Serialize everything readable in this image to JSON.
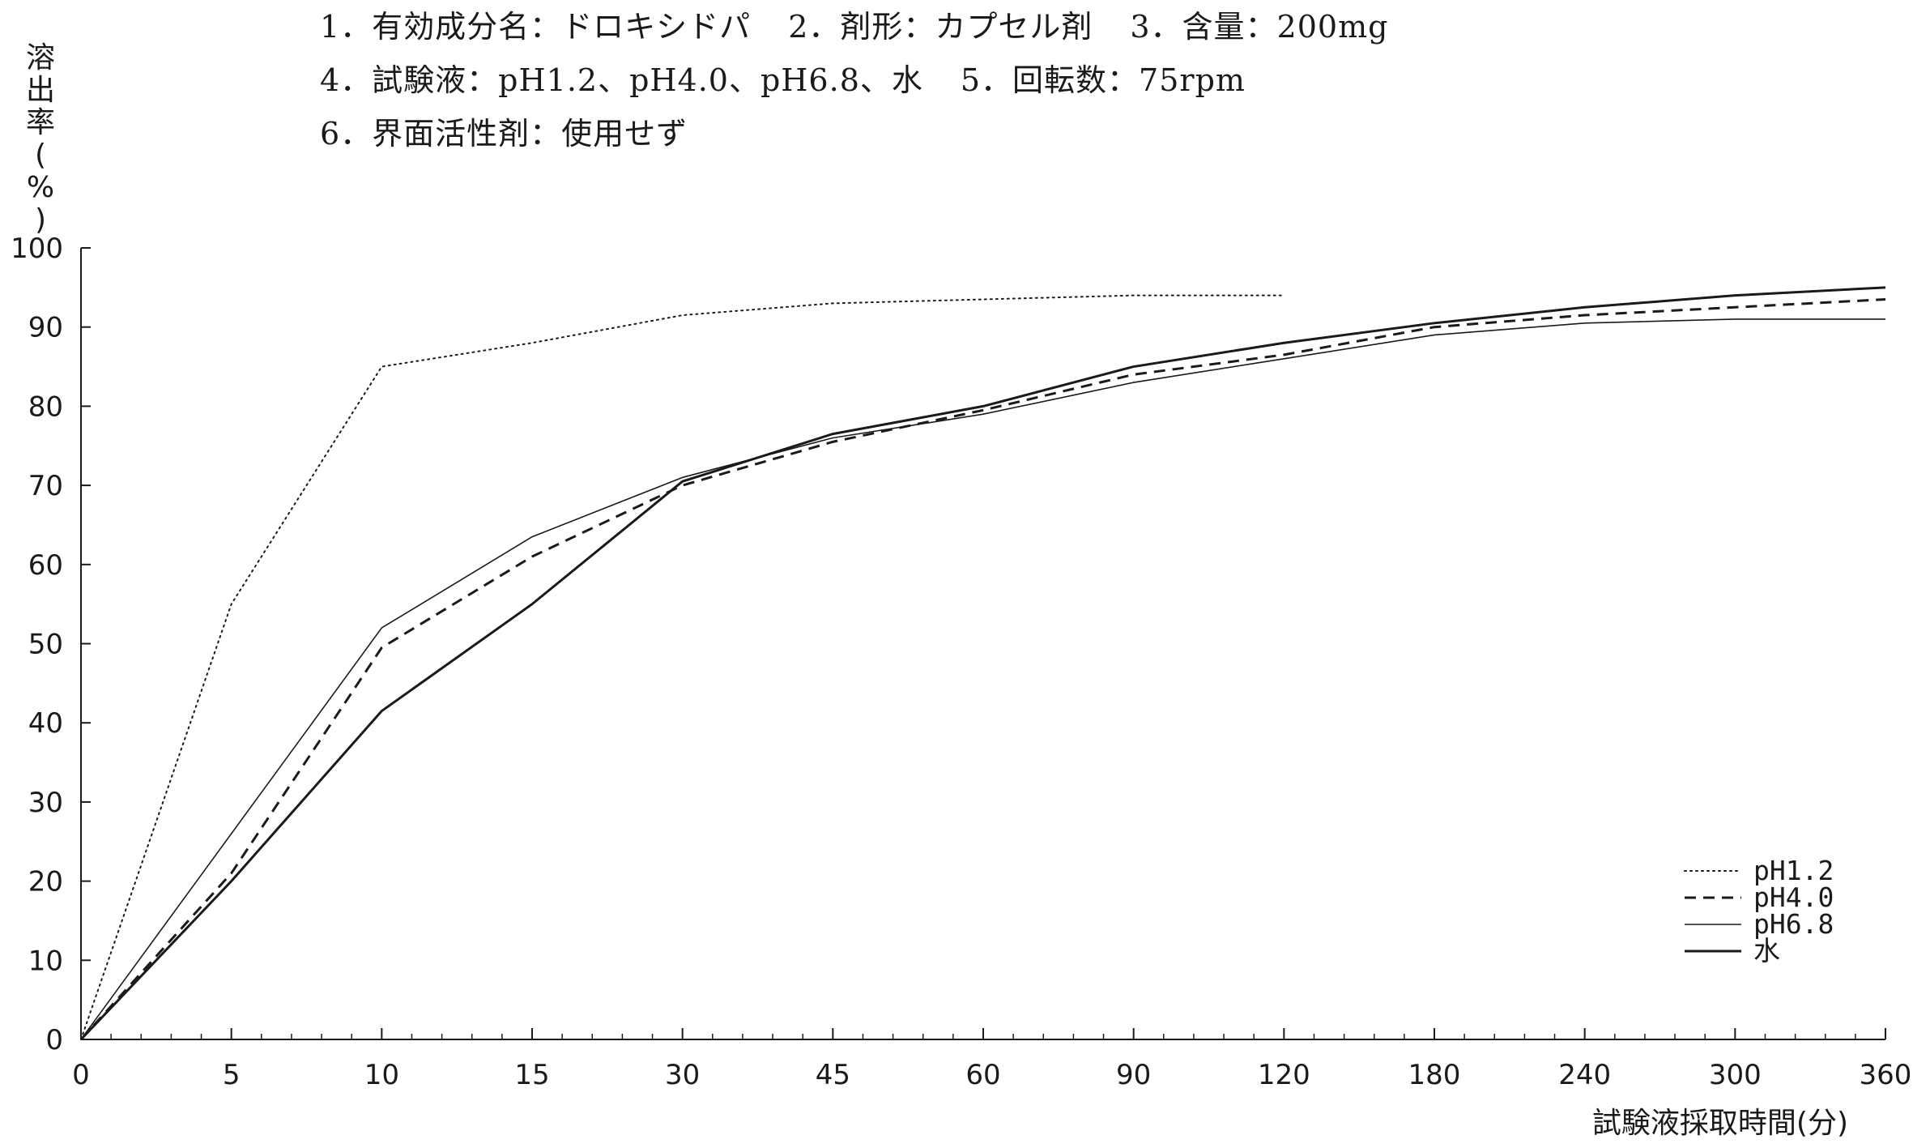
{
  "header": {
    "lines": [
      [
        "1．有効成分名：ドロキシドパ",
        "2．剤形：カプセル剤",
        "3．含量：200mg"
      ],
      [
        "4．試験液：pH1.2、pH4.0、pH6.8、水",
        "5．回転数：75rpm"
      ],
      [
        "6．界面活性剤：使用せず"
      ]
    ]
  },
  "chart_data": {
    "type": "line",
    "ylabel": "溶出率(%)",
    "xlabel": "試験液採取時間(分)",
    "x_categories": [
      "0",
      "5",
      "10",
      "15",
      "30",
      "45",
      "60",
      "90",
      "120",
      "180",
      "240",
      "300",
      "360"
    ],
    "y_ticks": [
      "0",
      "10",
      "20",
      "30",
      "40",
      "50",
      "60",
      "70",
      "80",
      "90",
      "100"
    ],
    "ylim": [
      0,
      100
    ],
    "grid": false,
    "legend_position": "bottom-right",
    "series": [
      {
        "name": "pH1.2",
        "style": "dotted",
        "values": [
          0,
          55,
          85,
          88,
          91.5,
          93,
          93.5,
          94,
          94,
          null,
          null,
          null,
          null
        ]
      },
      {
        "name": "pH4.0",
        "style": "dashed",
        "values": [
          0,
          21,
          49.5,
          61,
          70,
          75.5,
          79.5,
          84,
          86.5,
          90,
          91.5,
          92.5,
          93.5
        ]
      },
      {
        "name": "pH6.8",
        "style": "thin",
        "values": [
          0,
          26,
          52,
          63.5,
          71,
          76,
          79,
          83,
          86,
          89,
          90.5,
          91,
          91
        ]
      },
      {
        "name": "水",
        "style": "solid",
        "values": [
          0,
          20,
          41.5,
          55,
          70.5,
          76.5,
          80,
          85,
          88,
          90.5,
          92.5,
          94,
          95
        ]
      }
    ],
    "colors": {
      "line": "#1a1a1a"
    }
  }
}
